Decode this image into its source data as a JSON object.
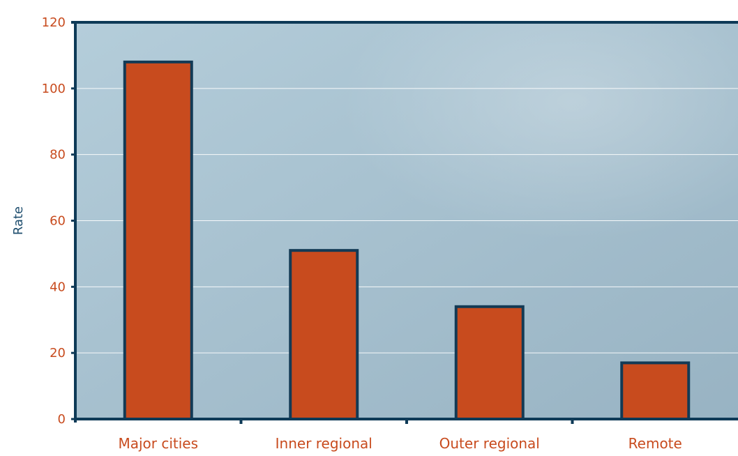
{
  "chart_data": {
    "type": "bar",
    "categories": [
      "Major cities",
      "Inner regional",
      "Outer regional",
      "Remote"
    ],
    "values": [
      108,
      51,
      34,
      17
    ],
    "title": "",
    "xlabel": "",
    "ylabel": "Rate",
    "ylim": [
      0,
      120
    ],
    "yticks": [
      0,
      20,
      40,
      60,
      80,
      100,
      120
    ],
    "grid": true,
    "legend": "none"
  },
  "colors": {
    "bar_fill": "#C84B1E",
    "bar_stroke": "#133A55",
    "axis": "#0E3A57",
    "tick_label": "#C84B1E",
    "ylabel": "#1F4E6E",
    "gridline": "#FFFFFF",
    "plot_bg_top": "#B4CDDA",
    "plot_bg_bottom": "#98B3C3"
  }
}
